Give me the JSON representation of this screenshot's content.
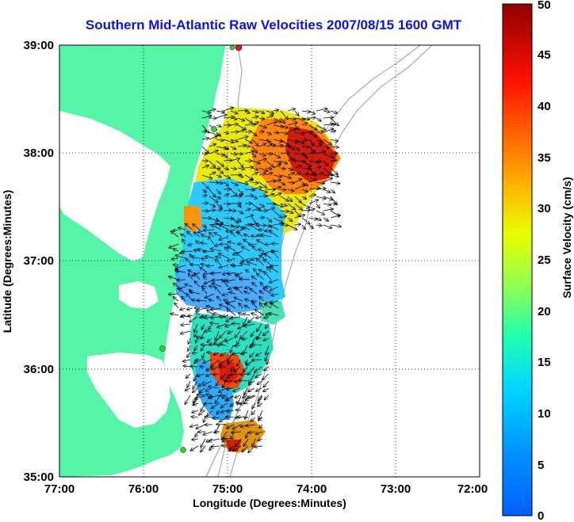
{
  "title": "Southern Mid-Atlantic Raw Velocities 2007/08/15 1600 GMT",
  "axes": {
    "xlabel": "Longitude (Degrees:Minutes)",
    "ylabel": "Latitude (Degrees:Minutes)",
    "x_ticks": [
      "77:00",
      "76:00",
      "75:00",
      "74:00",
      "73:00",
      "72:00"
    ],
    "y_ticks": [
      "39:00",
      "38:00",
      "37:00",
      "36:00",
      "35:00"
    ],
    "xlim": [
      -77,
      -72
    ],
    "ylim": [
      35,
      39
    ]
  },
  "colorbar": {
    "label": "Surface Velocity (cm/s)",
    "range": [
      0,
      50
    ],
    "ticks": [
      "0",
      "5",
      "10",
      "15",
      "20",
      "25",
      "30",
      "35",
      "40",
      "45",
      "50"
    ]
  },
  "colors": {
    "land": "#55f5a8",
    "title": "#1010e0",
    "station": "#22dd22",
    "station_active": "#ee1111"
  }
}
